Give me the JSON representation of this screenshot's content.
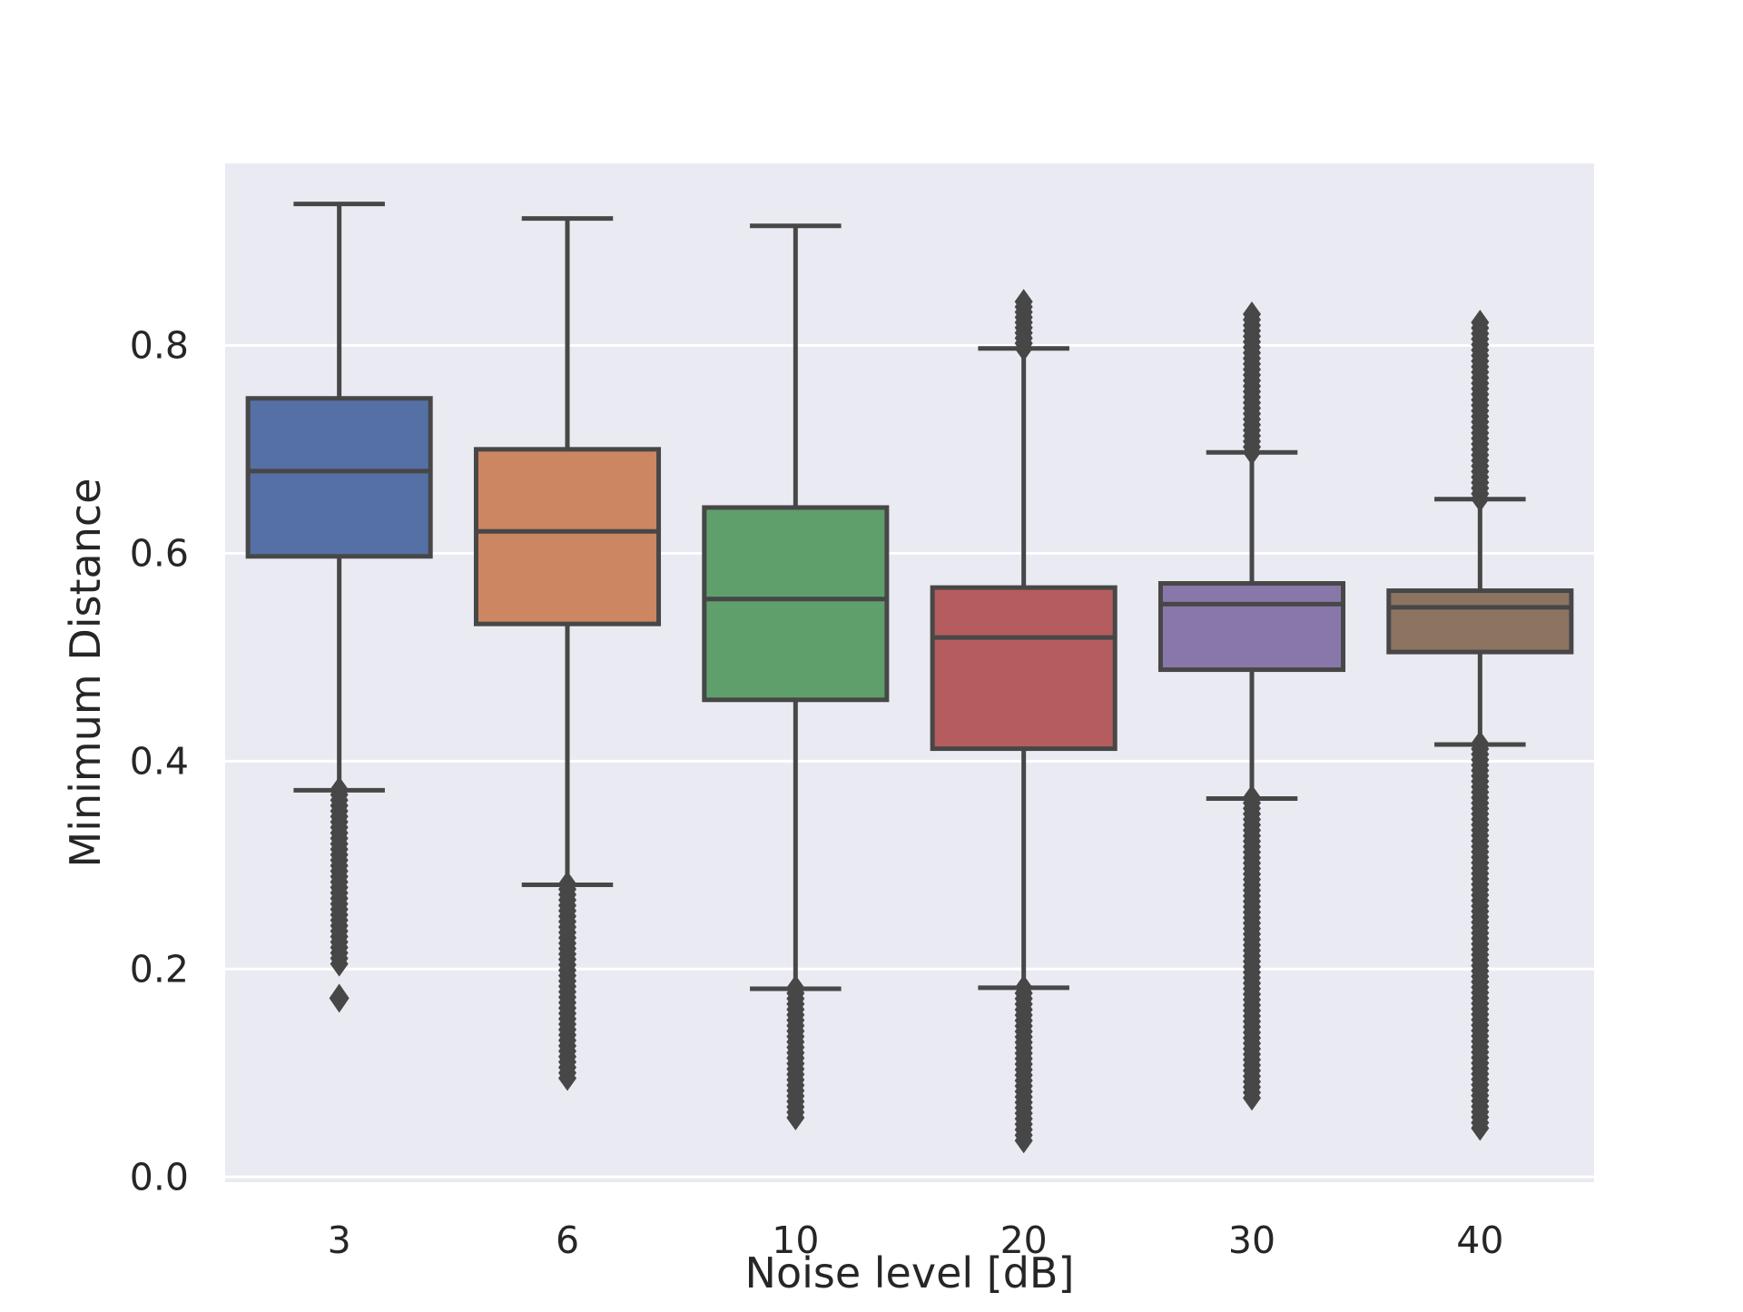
{
  "chart_data": {
    "type": "box",
    "title": "",
    "xlabel": "Noise level [dB]",
    "ylabel": "Minimum Distance",
    "categories": [
      "3",
      "6",
      "10",
      "20",
      "30",
      "40"
    ],
    "ylim": [
      -0.005,
      0.975
    ],
    "yticks": [
      0.0,
      0.2,
      0.4,
      0.6,
      0.8
    ],
    "ytick_labels": [
      "0.0",
      "0.2",
      "0.4",
      "0.6",
      "0.8"
    ],
    "grid": true,
    "background": "#eaeaf2",
    "grid_color": "#ffffff",
    "line_color": "#474747",
    "colors": [
      "#5470a4",
      "#cd8662",
      "#5e9f6c",
      "#b55c5f",
      "#8878aa",
      "#8c7461"
    ],
    "boxes": [
      {
        "category": "3",
        "whisker_low": 0.372,
        "q1": 0.597,
        "median": 0.679,
        "q3": 0.749,
        "whisker_high": 0.936,
        "outlier_range": [
          0.205,
          0.373
        ],
        "outliers": [
          0.172
        ]
      },
      {
        "category": "6",
        "whisker_low": 0.281,
        "q1": 0.532,
        "median": 0.621,
        "q3": 0.7,
        "whisker_high": 0.922,
        "outlier_range": [
          0.095,
          0.282
        ],
        "outliers": []
      },
      {
        "category": "10",
        "whisker_low": 0.181,
        "q1": 0.459,
        "median": 0.556,
        "q3": 0.644,
        "whisker_high": 0.915,
        "outlier_range": [
          0.057,
          0.182
        ],
        "outliers": []
      },
      {
        "category": "20",
        "whisker_low": 0.182,
        "q1": 0.412,
        "median": 0.519,
        "q3": 0.567,
        "whisker_high": 0.797,
        "outlier_range": [
          0.035,
          0.182
        ],
        "outlier_range_high": [
          0.797,
          0.842
        ],
        "outliers": []
      },
      {
        "category": "30",
        "whisker_low": 0.364,
        "q1": 0.488,
        "median": 0.551,
        "q3": 0.571,
        "whisker_high": 0.697,
        "outlier_range": [
          0.076,
          0.365
        ],
        "outlier_range_high": [
          0.697,
          0.83
        ],
        "outliers": []
      },
      {
        "category": "40",
        "whisker_low": 0.416,
        "q1": 0.505,
        "median": 0.548,
        "q3": 0.564,
        "whisker_high": 0.652,
        "outlier_range": [
          0.047,
          0.417
        ],
        "outlier_range_high": [
          0.652,
          0.822
        ],
        "outliers": []
      }
    ]
  }
}
